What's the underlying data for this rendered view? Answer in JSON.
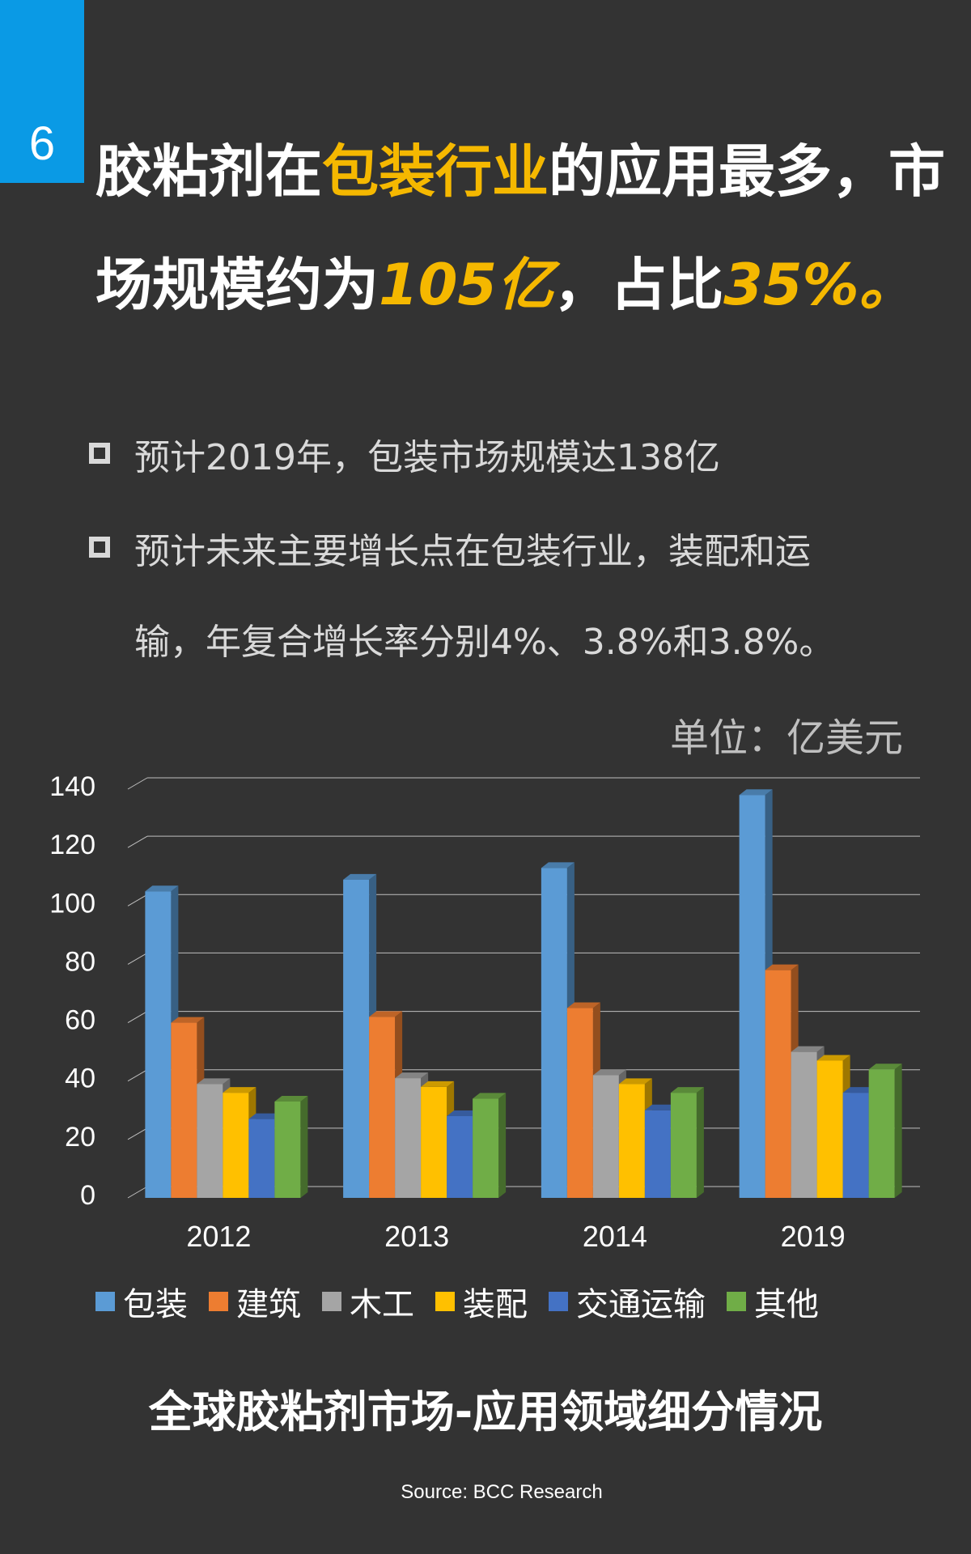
{
  "page": {
    "number": "6",
    "headline": {
      "line1": [
        "胶粘剂在",
        "包装行业",
        "的应用最多，市"
      ],
      "line2": [
        "场规模约为",
        "105亿",
        "，占比",
        "35%。"
      ]
    },
    "bullets": [
      "预计2019年，包装市场规模达138亿",
      "预计未来主要增长点在包装行业，装配和运",
      "输，年复合增长率分别4%、3.8%和3.8%。"
    ],
    "unit": "单位：亿美元",
    "source": "Source: BCC Research"
  },
  "colors": {
    "background": "#333333",
    "tab": "#0a9ae5",
    "highlight": "#f5b800"
  },
  "chart_data": {
    "type": "bar",
    "title": "全球胶粘剂市场-应用领域细分情况",
    "categories": [
      "2012",
      "2013",
      "2014",
      "2019"
    ],
    "ylim": [
      0,
      140
    ],
    "yticks": [
      0,
      20,
      40,
      60,
      80,
      100,
      120,
      140
    ],
    "grid": true,
    "legend_position": "bottom",
    "series": [
      {
        "name": "包装",
        "color": "#5b9bd5",
        "values": [
          105,
          109,
          113,
          138
        ]
      },
      {
        "name": "建筑",
        "color": "#ed7d31",
        "values": [
          60,
          62,
          65,
          78
        ]
      },
      {
        "name": "木工",
        "color": "#a5a5a5",
        "values": [
          39,
          41,
          42,
          50
        ]
      },
      {
        "name": "装配",
        "color": "#ffc000",
        "values": [
          36,
          38,
          39,
          47
        ]
      },
      {
        "name": "交通运输",
        "color": "#4472c4",
        "values": [
          27,
          28,
          30,
          36
        ]
      },
      {
        "name": "其他",
        "color": "#70ad47",
        "values": [
          33,
          34,
          36,
          44
        ]
      }
    ]
  }
}
